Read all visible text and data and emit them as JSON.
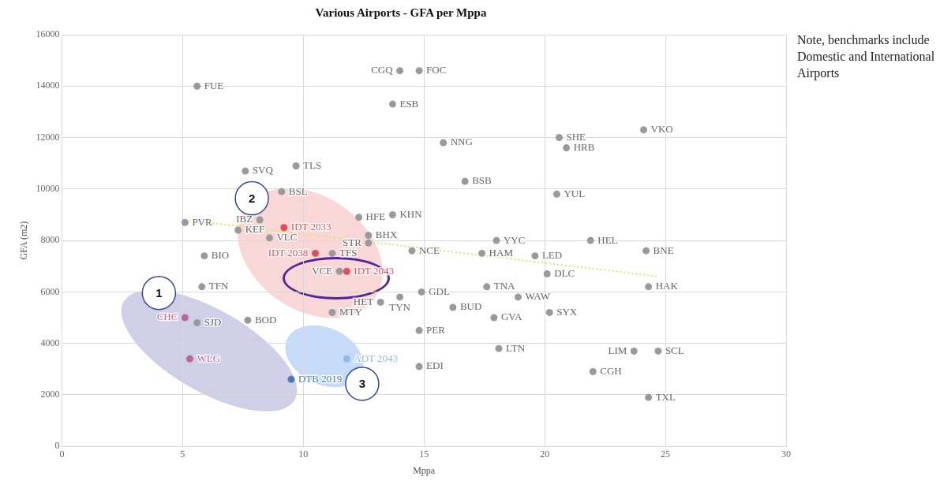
{
  "chart_data": {
    "type": "scatter",
    "title": "Various Airports - GFA per Mppa",
    "xlabel": "Mppa",
    "ylabel": "GFA (m2)",
    "xlim": [
      0,
      30
    ],
    "xticks": [
      0,
      5,
      10,
      15,
      20,
      25,
      30
    ],
    "ylim": [
      0,
      16000
    ],
    "yticks": [
      0,
      2000,
      4000,
      6000,
      8000,
      10000,
      12000,
      14000,
      16000
    ],
    "grid": true,
    "legend": false,
    "marker": "circle",
    "annotations": [
      "Note, benchmarks include Domestic and International Airports",
      {
        "text": "1",
        "x": 4.02,
        "y": 5960
      },
      {
        "text": "2",
        "x": 7.87,
        "y": 9640
      },
      {
        "text": "3",
        "x": 12.44,
        "y": 2430
      }
    ],
    "series": [
      {
        "name": "FUE",
        "color": "#9a9a9a",
        "x": [
          5.6
        ],
        "values": [
          14000
        ]
      },
      {
        "name": "CGQ",
        "color": "#9a9a9a",
        "x": [
          14.0
        ],
        "values": [
          14600
        ]
      },
      {
        "name": "FOC",
        "color": "#9a9a9a",
        "x": [
          14.8
        ],
        "values": [
          14600
        ]
      },
      {
        "name": "ESB",
        "color": "#9a9a9a",
        "x": [
          13.7
        ],
        "values": [
          13300
        ]
      },
      {
        "name": "NNG",
        "color": "#9a9a9a",
        "x": [
          15.8
        ],
        "values": [
          11800
        ]
      },
      {
        "name": "BSB",
        "color": "#9a9a9a",
        "x": [
          16.7
        ],
        "values": [
          10300
        ]
      },
      {
        "name": "SHE",
        "color": "#9a9a9a",
        "x": [
          20.6
        ],
        "values": [
          12000
        ]
      },
      {
        "name": "HRB",
        "color": "#9a9a9a",
        "x": [
          20.9
        ],
        "values": [
          11600
        ]
      },
      {
        "name": "VKO",
        "color": "#9a9a9a",
        "x": [
          24.1
        ],
        "values": [
          12300
        ]
      },
      {
        "name": "YUL",
        "color": "#9a9a9a",
        "x": [
          20.5
        ],
        "values": [
          9800
        ]
      },
      {
        "name": "SVQ",
        "color": "#9a9a9a",
        "x": [
          7.6
        ],
        "values": [
          10700
        ]
      },
      {
        "name": "TLS",
        "color": "#9a9a9a",
        "x": [
          9.7
        ],
        "values": [
          10900
        ]
      },
      {
        "name": "BSL",
        "color": "#9a9a9a",
        "x": [
          9.1
        ],
        "values": [
          9900
        ]
      },
      {
        "name": "IBZ",
        "color": "#9a9a9a",
        "x": [
          8.2
        ],
        "values": [
          8800
        ]
      },
      {
        "name": "PVR",
        "color": "#9a9a9a",
        "x": [
          5.1
        ],
        "values": [
          8700
        ]
      },
      {
        "name": "KEF",
        "color": "#9a9a9a",
        "x": [
          7.3
        ],
        "values": [
          8400
        ]
      },
      {
        "name": "VLC",
        "color": "#9a9a9a",
        "x": [
          8.6
        ],
        "values": [
          8100
        ]
      },
      {
        "name": "HFE",
        "color": "#9a9a9a",
        "x": [
          12.3
        ],
        "values": [
          8900
        ]
      },
      {
        "name": "KHN",
        "color": "#9a9a9a",
        "x": [
          13.7
        ],
        "values": [
          9000
        ]
      },
      {
        "name": "BHX",
        "color": "#9a9a9a",
        "x": [
          12.7
        ],
        "values": [
          8200
        ]
      },
      {
        "name": "STR",
        "color": "#9a9a9a",
        "x": [
          12.7
        ],
        "values": [
          7900
        ]
      },
      {
        "name": "NCE",
        "color": "#9a9a9a",
        "x": [
          14.5
        ],
        "values": [
          7600
        ]
      },
      {
        "name": "YYC",
        "color": "#9a9a9a",
        "x": [
          18.0
        ],
        "values": [
          8000
        ]
      },
      {
        "name": "HAM",
        "color": "#9a9a9a",
        "x": [
          17.4
        ],
        "values": [
          7500
        ]
      },
      {
        "name": "LED",
        "color": "#9a9a9a",
        "x": [
          19.6
        ],
        "values": [
          7400
        ]
      },
      {
        "name": "HEL",
        "color": "#9a9a9a",
        "x": [
          21.9
        ],
        "values": [
          8000
        ]
      },
      {
        "name": "BNE",
        "color": "#9a9a9a",
        "x": [
          24.2
        ],
        "values": [
          7600
        ]
      },
      {
        "name": "DLC",
        "color": "#9a9a9a",
        "x": [
          20.1
        ],
        "values": [
          6700
        ]
      },
      {
        "name": "HAK",
        "color": "#9a9a9a",
        "x": [
          24.3
        ],
        "values": [
          6200
        ]
      },
      {
        "name": "BIO",
        "color": "#9a9a9a",
        "x": [
          5.9
        ],
        "values": [
          7400
        ]
      },
      {
        "name": "TFN",
        "color": "#9a9a9a",
        "x": [
          5.8
        ],
        "values": [
          6200
        ]
      },
      {
        "name": "TFS",
        "color": "#9a9a9a",
        "x": [
          11.2
        ],
        "values": [
          7500
        ]
      },
      {
        "name": "VCE",
        "color": "#9a9a9a",
        "x": [
          11.5
        ],
        "values": [
          6800
        ]
      },
      {
        "name": "TNA",
        "color": "#9a9a9a",
        "x": [
          17.6
        ],
        "values": [
          6200
        ]
      },
      {
        "name": "WAW",
        "color": "#9a9a9a",
        "x": [
          18.9
        ],
        "values": [
          5800
        ]
      },
      {
        "name": "GDL",
        "color": "#9a9a9a",
        "x": [
          14.9
        ],
        "values": [
          6000
        ]
      },
      {
        "name": "TYN",
        "color": "#9a9a9a",
        "x": [
          14.0
        ],
        "values": [
          5800
        ]
      },
      {
        "name": "HET",
        "color": "#9a9a9a",
        "x": [
          13.2
        ],
        "values": [
          5600
        ]
      },
      {
        "name": "MTY",
        "color": "#9a9a9a",
        "x": [
          11.2
        ],
        "values": [
          5200
        ]
      },
      {
        "name": "BUD",
        "color": "#9a9a9a",
        "x": [
          16.2
        ],
        "values": [
          5400
        ]
      },
      {
        "name": "GVA",
        "color": "#9a9a9a",
        "x": [
          17.9
        ],
        "values": [
          5000
        ]
      },
      {
        "name": "SYX",
        "color": "#9a9a9a",
        "x": [
          20.2
        ],
        "values": [
          5200
        ]
      },
      {
        "name": "PER",
        "color": "#9a9a9a",
        "x": [
          14.8
        ],
        "values": [
          4500
        ]
      },
      {
        "name": "LTN",
        "color": "#9a9a9a",
        "x": [
          18.1
        ],
        "values": [
          3800
        ]
      },
      {
        "name": "LIM",
        "color": "#9a9a9a",
        "x": [
          23.7
        ],
        "values": [
          3700
        ]
      },
      {
        "name": "SCL",
        "color": "#9a9a9a",
        "x": [
          24.7
        ],
        "values": [
          3700
        ]
      },
      {
        "name": "EDI",
        "color": "#9a9a9a",
        "x": [
          14.8
        ],
        "values": [
          3100
        ]
      },
      {
        "name": "CGH",
        "color": "#9a9a9a",
        "x": [
          22.0
        ],
        "values": [
          2900
        ]
      },
      {
        "name": "TXL",
        "color": "#9a9a9a",
        "x": [
          24.3
        ],
        "values": [
          1900
        ]
      },
      {
        "name": "SJD",
        "color": "#9a9a9a",
        "x": [
          5.6
        ],
        "values": [
          4800
        ]
      },
      {
        "name": "BOD",
        "color": "#9a9a9a",
        "x": [
          7.7
        ],
        "values": [
          4900
        ]
      },
      {
        "name": "CHC",
        "color": "#c0649e",
        "x": [
          5.1
        ],
        "values": [
          5000
        ]
      },
      {
        "name": "WLG",
        "color": "#c0649e",
        "x": [
          5.3
        ],
        "values": [
          3400
        ]
      },
      {
        "name": "DTB 2019",
        "color": "#4a78b8",
        "x": [
          9.5
        ],
        "values": [
          2600
        ]
      },
      {
        "name": "ADT 2043",
        "color": "#8fbbe8",
        "x": [
          11.8
        ],
        "values": [
          3400
        ]
      },
      {
        "name": "IDT 2033",
        "color": "#e0505a",
        "x": [
          9.2
        ],
        "values": [
          8500
        ]
      },
      {
        "name": "IDT 2038",
        "color": "#e0505a",
        "x": [
          10.5
        ],
        "values": [
          7500
        ]
      },
      {
        "name": "IDT 2043",
        "color": "#e0505a",
        "x": [
          11.8
        ],
        "values": [
          6800
        ]
      },
      {
        "type": "line",
        "color": "#e8df6a",
        "line_style": "dotted",
        "marker": "none",
        "x": [
          5.1,
          24.7
        ],
        "values": [
          8800,
          6600
        ]
      }
    ]
  }
}
